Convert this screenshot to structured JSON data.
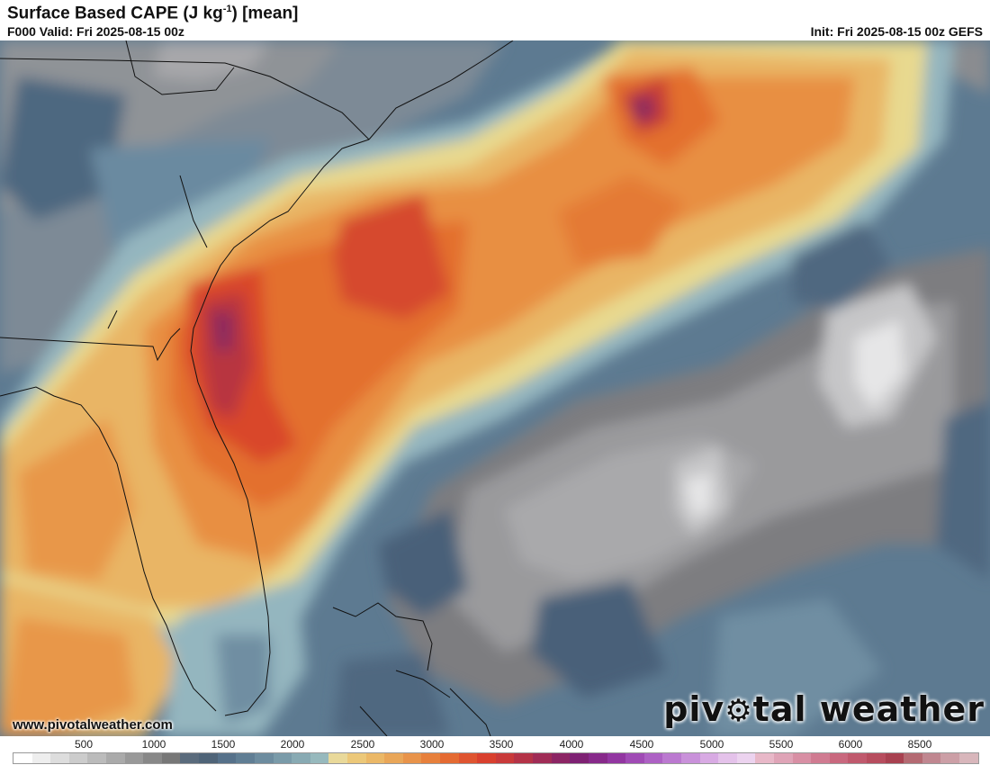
{
  "header": {
    "title_main": "Surface Based CAPE (J kg",
    "title_sup": "-1",
    "title_tail": ") [mean]",
    "valid": "F000 Valid: Fri 2025-08-15 00z",
    "init": "Init: Fri 2025-08-15 00z GEFS"
  },
  "footer": {
    "url": "www.pivotalweather.com",
    "brand_left": "piv",
    "brand_gear": "⚙",
    "brand_right": "tal weather"
  },
  "legend": {
    "ticks": [
      "500",
      "1000",
      "1500",
      "2000",
      "2500",
      "3000",
      "3500",
      "4000",
      "4500",
      "5000",
      "5500",
      "6000",
      "8500"
    ],
    "colors": [
      "#ffffff",
      "#eeeeee",
      "#dddddd",
      "#cccccc",
      "#bbbbbb",
      "#aaaaaa",
      "#999999",
      "#888888",
      "#777777",
      "#5a6b7c",
      "#4f6478",
      "#56718a",
      "#607e94",
      "#6d8c9f",
      "#7a9ba9",
      "#88aab3",
      "#97b9bd",
      "#e9d99a",
      "#ecc879",
      "#ebb867",
      "#e9a658",
      "#e8934a",
      "#e7803c",
      "#e46a32",
      "#df5430",
      "#d9402e",
      "#c93a3a",
      "#b43347",
      "#a02c56",
      "#8c2564",
      "#7e2173",
      "#87298a",
      "#9236a1",
      "#a04bb5",
      "#ad61c4",
      "#bb79d0",
      "#c991da",
      "#d8aae3",
      "#e4c2ea",
      "#ecd3ef",
      "#e8b8c8",
      "#dfa4b7",
      "#d88fa4",
      "#d07b91",
      "#c9687e",
      "#c0596d",
      "#b74d5e",
      "#a84150",
      "#b46a72",
      "#c08790",
      "#cc9fa6",
      "#d8b6bb"
    ]
  },
  "map": {
    "colors": {
      "dark_slate": "#4a6079",
      "slate": "#5d7a91",
      "steel": "#6f8ea2",
      "light_blue": "#94b6bf",
      "pale_yellow": "#e8d98f",
      "tan": "#e9b565",
      "orange": "#e88f42",
      "deep_orange": "#e3702f",
      "red": "#d9472c",
      "crimson": "#b8353f",
      "purple": "#8c2a5e",
      "grey": "#7d7d80",
      "light_grey": "#9a9a9c",
      "pale_grey": "#c6c6c8",
      "near_white": "#e6e6e7"
    }
  }
}
